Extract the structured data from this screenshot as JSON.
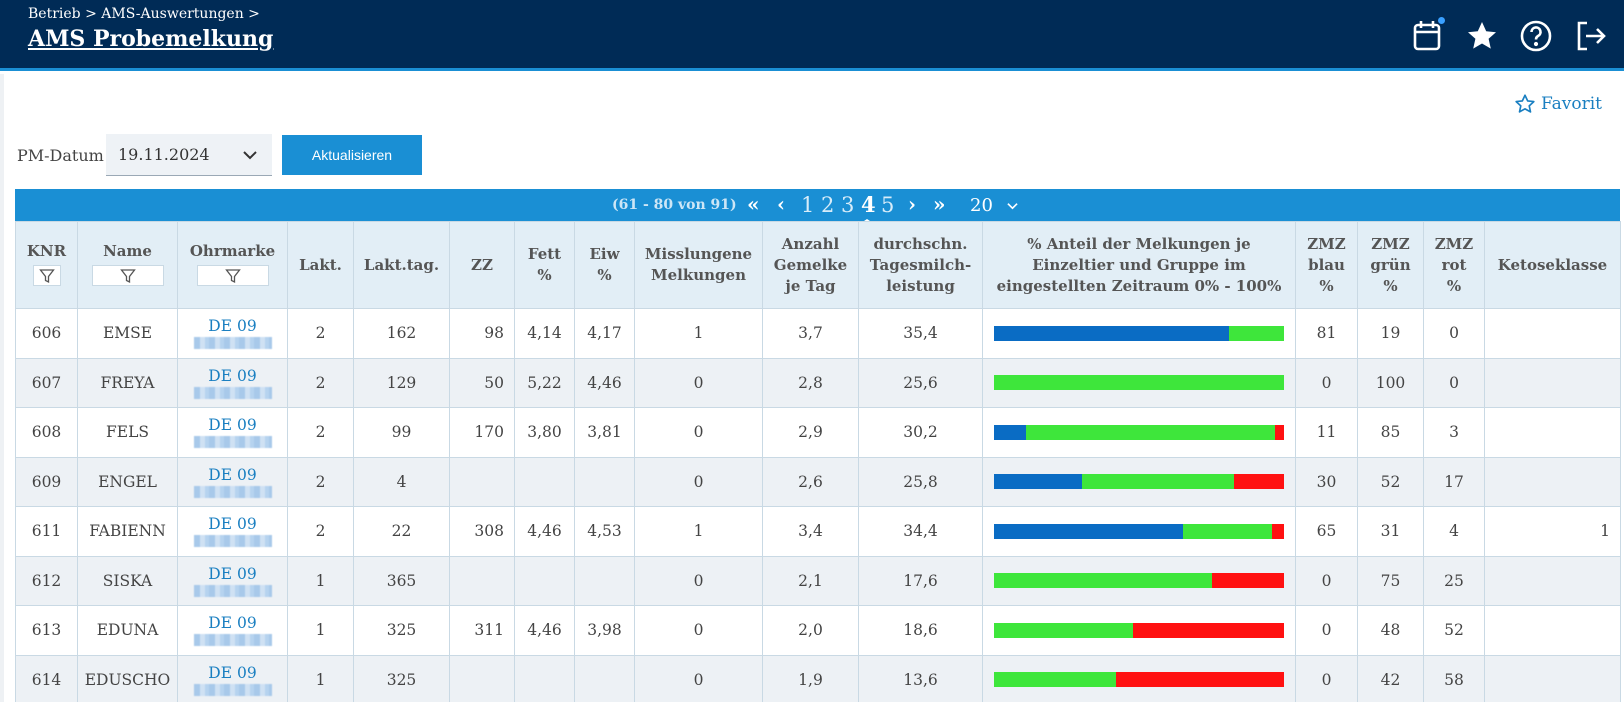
{
  "header": {
    "breadcrumb": "Betrieb > AMS-Auswertungen >",
    "title": "AMS Probemelkung",
    "icons": [
      "calendar-icon",
      "star-icon",
      "help-icon",
      "logout-icon"
    ]
  },
  "favorite_label": "Favorit",
  "filter": {
    "label": "PM-Datum",
    "date_value": "19.11.2024",
    "button_label": "Aktualisieren"
  },
  "pagination": {
    "range_text": "(61 - 80 von 91)",
    "first": "«",
    "prev": "‹",
    "pages": [
      "1",
      "2",
      "3",
      "4",
      "5"
    ],
    "current_page": "4",
    "next": "›",
    "last": "»",
    "page_size": "20"
  },
  "colors": {
    "header_bg": "#002b56",
    "accent": "#1a8fd4",
    "bar_blue": "#0a6cc4",
    "bar_green": "#3ee63b",
    "bar_red": "#ff1111"
  },
  "table": {
    "columns": {
      "knr": "KNR",
      "name": "Name",
      "ohrmarke": "Ohrmarke",
      "lakt": "Lakt.",
      "lakttag": "Lakt.tag.",
      "zz": "ZZ",
      "fett_1": "Fett",
      "fett_2": "%",
      "eiw_1": "Eiw",
      "eiw_2": "%",
      "miss_1": "Misslungene",
      "miss_2": "Melkungen",
      "anz_1": "Anzahl",
      "anz_2": "Gemelke",
      "anz_3": "je Tag",
      "ds_1": "durchschn.",
      "ds_2": "Tagesmilch-",
      "ds_3": "leistung",
      "ant_1": "% Anteil der Melkungen je",
      "ant_2": "Einzeltier und Gruppe im",
      "ant_3": "eingestellten Zeitraum 0% - 100%",
      "zb_1": "ZMZ",
      "zb_2": "blau",
      "zb_3": "%",
      "zg_1": "ZMZ",
      "zg_2": "grün",
      "zg_3": "%",
      "zr_1": "ZMZ",
      "zr_2": "rot",
      "zr_3": "%",
      "ketose": "Ketoseklasse"
    },
    "rows": [
      {
        "knr": "606",
        "name": "EMSE",
        "ear": "DE 09",
        "lakt": "2",
        "lakttag": "162",
        "zz": "98",
        "fett": "4,14",
        "eiw": "4,17",
        "miss": "1",
        "anz": "3,7",
        "ds": "35,4",
        "blau": "81",
        "gruen": "19",
        "rot": "0",
        "ketose": ""
      },
      {
        "knr": "607",
        "name": "FREYA",
        "ear": "DE 09",
        "lakt": "2",
        "lakttag": "129",
        "zz": "50",
        "fett": "5,22",
        "eiw": "4,46",
        "miss": "0",
        "anz": "2,8",
        "ds": "25,6",
        "blau": "0",
        "gruen": "100",
        "rot": "0",
        "ketose": ""
      },
      {
        "knr": "608",
        "name": "FELS",
        "ear": "DE 09",
        "lakt": "2",
        "lakttag": "99",
        "zz": "170",
        "fett": "3,80",
        "eiw": "3,81",
        "miss": "0",
        "anz": "2,9",
        "ds": "30,2",
        "blau": "11",
        "gruen": "85",
        "rot": "3",
        "ketose": ""
      },
      {
        "knr": "609",
        "name": "ENGEL",
        "ear": "DE 09",
        "lakt": "2",
        "lakttag": "4",
        "zz": "",
        "fett": "",
        "eiw": "",
        "miss": "0",
        "anz": "2,6",
        "ds": "25,8",
        "blau": "30",
        "gruen": "52",
        "rot": "17",
        "ketose": ""
      },
      {
        "knr": "611",
        "name": "FABIENN",
        "ear": "DE 09",
        "lakt": "2",
        "lakttag": "22",
        "zz": "308",
        "fett": "4,46",
        "eiw": "4,53",
        "miss": "1",
        "anz": "3,4",
        "ds": "34,4",
        "blau": "65",
        "gruen": "31",
        "rot": "4",
        "ketose": "1"
      },
      {
        "knr": "612",
        "name": "SISKA",
        "ear": "DE 09",
        "lakt": "1",
        "lakttag": "365",
        "zz": "",
        "fett": "",
        "eiw": "",
        "miss": "0",
        "anz": "2,1",
        "ds": "17,6",
        "blau": "0",
        "gruen": "75",
        "rot": "25",
        "ketose": ""
      },
      {
        "knr": "613",
        "name": "EDUNA",
        "ear": "DE 09",
        "lakt": "1",
        "lakttag": "325",
        "zz": "311",
        "fett": "4,46",
        "eiw": "3,98",
        "miss": "0",
        "anz": "2,0",
        "ds": "18,6",
        "blau": "0",
        "gruen": "48",
        "rot": "52",
        "ketose": ""
      },
      {
        "knr": "614",
        "name": "EDUSCHO",
        "ear": "DE 09",
        "lakt": "1",
        "lakttag": "325",
        "zz": "",
        "fett": "",
        "eiw": "",
        "miss": "0",
        "anz": "1,9",
        "ds": "13,6",
        "blau": "0",
        "gruen": "42",
        "rot": "58",
        "ketose": ""
      }
    ]
  }
}
